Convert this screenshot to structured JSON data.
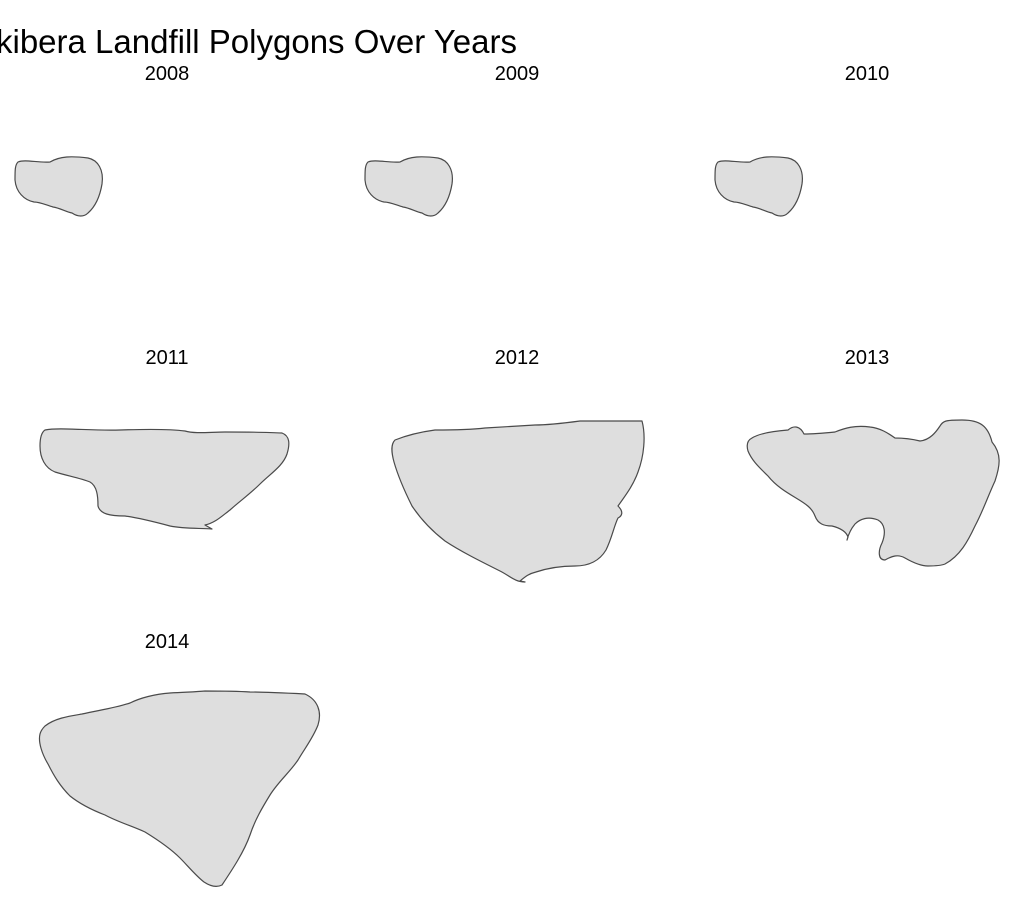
{
  "title": "kibera Landfill Polygons Over Years",
  "panels": [
    {
      "year": "2008",
      "shape": "polygon-2008"
    },
    {
      "year": "2009",
      "shape": "polygon-2009"
    },
    {
      "year": "2010",
      "shape": "polygon-2010"
    },
    {
      "year": "2011",
      "shape": "polygon-2011"
    },
    {
      "year": "2012",
      "shape": "polygon-2012"
    },
    {
      "year": "2013",
      "shape": "polygon-2013"
    },
    {
      "year": "2014",
      "shape": "polygon-2014"
    }
  ],
  "colors": {
    "fill": "#dedede",
    "stroke": "#4a4a4a",
    "background": "#ffffff"
  }
}
